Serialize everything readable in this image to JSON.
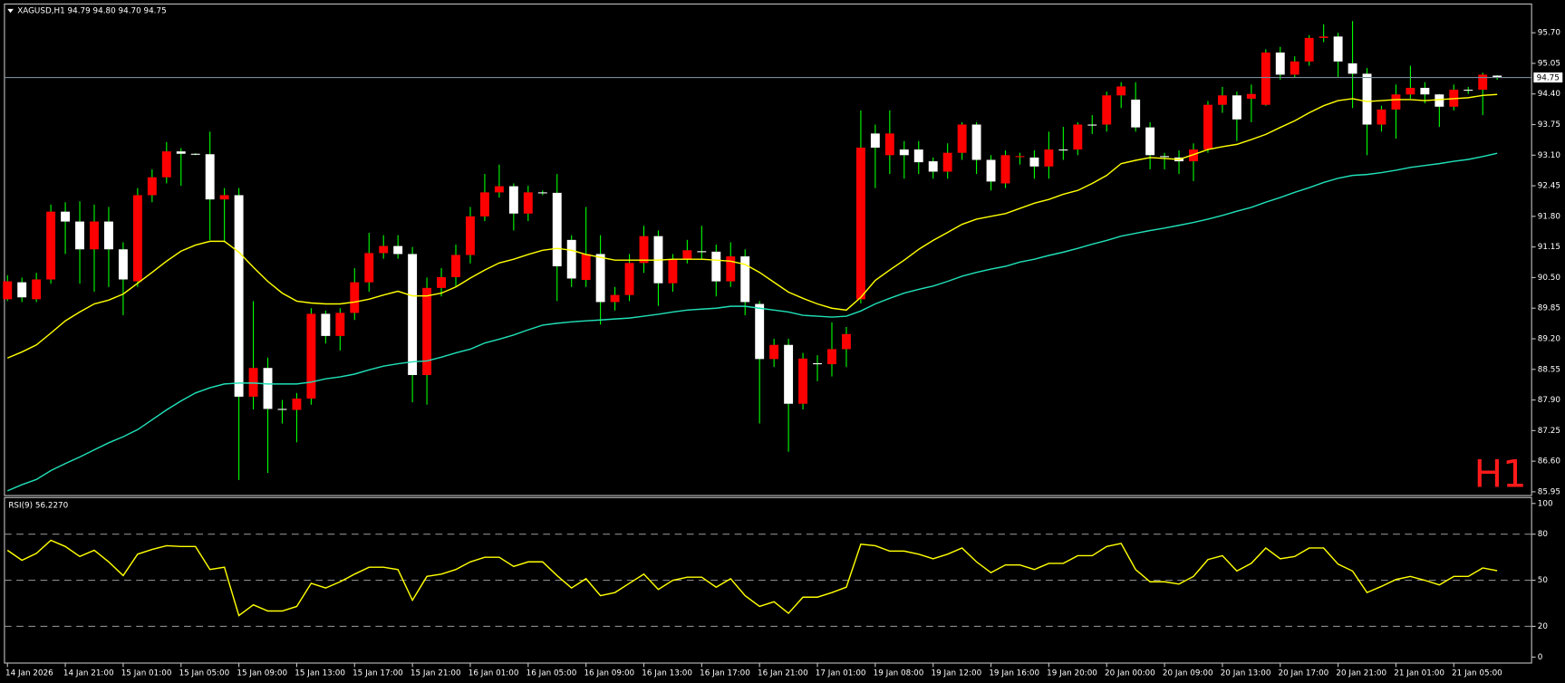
{
  "chart_data": [
    {
      "type": "candlestick",
      "title": "XAGUSD,H1  94.79 94.80 94.70 94.75",
      "annotation": "H1",
      "current_price": 94.75,
      "up_color": "#ff0000",
      "down_color": "#ffffff",
      "wick_color": "#00ff00",
      "price_line_color": "#778899",
      "categories": [
        "14 Jan 2026",
        null,
        null,
        null,
        "14 Jan 21:00",
        null,
        null,
        null,
        "15 Jan 01:00",
        null,
        null,
        null,
        "15 Jan 05:00",
        null,
        null,
        null,
        "15 Jan 09:00",
        null,
        null,
        null,
        "15 Jan 13:00",
        null,
        null,
        null,
        "15 Jan 17:00",
        null,
        null,
        null,
        "15 Jan 21:00",
        null,
        null,
        null,
        "16 Jan 01:00",
        null,
        null,
        null,
        "16 Jan 05:00",
        null,
        null,
        null,
        "16 Jan 09:00",
        null,
        null,
        null,
        "16 Jan 13:00",
        null,
        null,
        null,
        "16 Jan 17:00",
        null,
        null,
        null,
        "16 Jan 21:00",
        null,
        null,
        null,
        "17 Jan 01:00",
        null,
        null,
        null,
        "19 Jan 08:00",
        null,
        null,
        null,
        "19 Jan 12:00",
        null,
        null,
        null,
        "19 Jan 16:00",
        null,
        null,
        null,
        "19 Jan 20:00",
        null,
        null,
        null,
        "20 Jan 00:00",
        null,
        null,
        null,
        "20 Jan 09:00",
        null,
        null,
        null,
        "20 Jan 13:00",
        null,
        null,
        null,
        "20 Jan 17:00",
        null,
        null,
        null,
        "20 Jan 21:00",
        null,
        null,
        null,
        "21 Jan 01:00",
        null,
        null,
        null,
        "21 Jan 05:00",
        null,
        null,
        null
      ],
      "open": [
        90.04,
        90.4,
        90.04,
        90.46,
        91.9,
        91.69,
        91.1,
        91.69,
        91.1,
        90.42,
        92.25,
        92.63,
        93.18,
        93.13,
        93.12,
        92.16,
        92.25,
        87.97,
        88.58,
        87.71,
        87.69,
        87.93,
        89.73,
        89.26,
        89.75,
        90.4,
        91.02,
        91.17,
        91.0,
        88.43,
        90.28,
        90.51,
        90.98,
        91.8,
        92.31,
        92.44,
        91.86,
        92.31,
        92.3,
        91.3,
        90.45,
        91.0,
        89.98,
        90.13,
        90.81,
        91.38,
        90.38,
        90.89,
        91.06,
        91.05,
        90.42,
        90.95,
        89.94,
        88.77,
        89.07,
        87.82,
        88.68,
        88.66,
        88.98,
        90.04,
        93.56,
        93.1,
        93.22,
        93.22,
        92.97,
        92.75,
        93.15,
        93.75,
        93.0,
        92.5,
        93.07,
        93.05,
        92.86,
        93.22,
        93.22,
        93.75,
        93.75,
        94.37,
        94.28,
        93.69,
        93.08,
        93.05,
        92.97,
        93.22,
        94.17,
        94.37,
        94.3,
        94.17,
        95.28,
        94.81,
        95.09,
        95.59,
        95.62,
        95.05,
        94.83,
        93.75,
        94.07,
        94.39,
        94.53,
        94.39,
        94.13,
        94.49,
        94.49,
        94.79
      ],
      "high": [
        90.55,
        90.5,
        90.6,
        92.05,
        92.1,
        92.12,
        92.05,
        92.0,
        91.25,
        92.4,
        92.8,
        93.38,
        93.25,
        93.14,
        93.6,
        92.4,
        92.4,
        90.0,
        88.8,
        87.9,
        88.05,
        89.85,
        89.8,
        89.85,
        90.7,
        91.45,
        91.4,
        91.4,
        91.15,
        90.5,
        90.7,
        91.2,
        92.0,
        92.7,
        92.9,
        92.5,
        92.45,
        92.35,
        92.7,
        91.4,
        92.0,
        91.4,
        90.3,
        91.0,
        91.6,
        91.5,
        91.0,
        91.3,
        91.6,
        91.2,
        91.25,
        91.1,
        90.0,
        89.2,
        89.2,
        88.9,
        88.85,
        89.55,
        89.45,
        94.05,
        93.75,
        94.05,
        93.4,
        93.4,
        93.05,
        93.35,
        93.8,
        93.8,
        93.1,
        93.2,
        93.15,
        93.2,
        93.6,
        93.7,
        93.8,
        93.95,
        94.45,
        94.65,
        94.65,
        93.8,
        93.15,
        93.2,
        93.35,
        94.25,
        94.55,
        94.45,
        94.6,
        95.35,
        95.4,
        95.2,
        95.65,
        95.88,
        95.7,
        95.95,
        94.95,
        94.15,
        94.6,
        95.0,
        94.65,
        94.4,
        94.6,
        94.55,
        94.85,
        94.8
      ],
      "low": [
        90.0,
        89.98,
        89.98,
        90.37,
        91.0,
        90.37,
        90.2,
        90.3,
        89.7,
        90.3,
        92.1,
        92.5,
        92.45,
        93.1,
        91.3,
        91.25,
        86.2,
        87.7,
        86.35,
        87.4,
        87.0,
        87.8,
        89.1,
        88.95,
        89.6,
        90.2,
        90.9,
        90.9,
        87.85,
        87.8,
        90.1,
        90.3,
        90.8,
        91.7,
        92.2,
        91.5,
        91.7,
        92.25,
        90.0,
        90.3,
        90.3,
        89.5,
        89.8,
        90.0,
        90.6,
        89.9,
        90.2,
        90.8,
        90.9,
        90.1,
        90.3,
        89.7,
        87.4,
        88.6,
        86.8,
        87.7,
        88.3,
        88.4,
        88.6,
        89.95,
        92.4,
        92.7,
        92.6,
        92.7,
        92.6,
        92.6,
        93.0,
        92.7,
        92.35,
        92.4,
        92.9,
        92.6,
        92.6,
        93.0,
        93.1,
        93.55,
        93.6,
        94.1,
        93.6,
        92.8,
        92.8,
        92.7,
        92.55,
        93.15,
        94.0,
        93.4,
        93.8,
        94.15,
        94.7,
        94.75,
        95.0,
        95.5,
        94.75,
        94.1,
        93.1,
        93.6,
        93.45,
        94.3,
        94.2,
        93.7,
        94.05,
        94.4,
        93.95,
        94.7
      ],
      "close": [
        90.42,
        90.08,
        90.46,
        91.9,
        91.69,
        91.1,
        91.69,
        91.1,
        90.46,
        92.25,
        92.63,
        93.18,
        93.13,
        93.12,
        92.16,
        92.25,
        87.97,
        88.58,
        87.71,
        87.69,
        87.93,
        89.73,
        89.26,
        89.75,
        90.4,
        91.02,
        91.17,
        91.0,
        88.43,
        90.28,
        90.51,
        90.98,
        91.8,
        92.31,
        92.44,
        91.86,
        92.31,
        92.3,
        90.74,
        90.48,
        91.0,
        89.98,
        90.13,
        90.81,
        91.38,
        90.38,
        90.89,
        91.08,
        91.05,
        90.42,
        90.95,
        89.98,
        88.77,
        89.07,
        87.82,
        88.78,
        88.66,
        88.98,
        89.3,
        93.26,
        93.26,
        93.56,
        93.1,
        92.95,
        92.75,
        93.15,
        93.75,
        93.0,
        92.54,
        93.1,
        93.08,
        92.86,
        93.22,
        93.21,
        93.75,
        93.74,
        94.37,
        94.56,
        93.69,
        93.1,
        93.07,
        92.97,
        93.22,
        94.17,
        94.37,
        93.86,
        94.4,
        95.28,
        94.81,
        95.09,
        95.59,
        95.62,
        95.09,
        94.83,
        93.75,
        94.07,
        94.39,
        94.53,
        94.39,
        94.13,
        94.49,
        94.48,
        94.81,
        94.75
      ],
      "series": [
        {
          "color": "#ffff00",
          "values": [
            88.79,
            88.92,
            89.07,
            89.32,
            89.58,
            89.77,
            89.94,
            90.02,
            90.15,
            90.38,
            90.61,
            90.85,
            91.06,
            91.19,
            91.27,
            91.27,
            91.04,
            90.72,
            90.42,
            90.17,
            90.0,
            89.96,
            89.94,
            89.94,
            89.98,
            90.04,
            90.13,
            90.21,
            90.11,
            90.11,
            90.17,
            90.3,
            90.49,
            90.66,
            90.81,
            90.89,
            90.99,
            91.08,
            91.12,
            91.08,
            90.99,
            90.93,
            90.87,
            90.87,
            90.87,
            90.87,
            90.89,
            90.89,
            90.89,
            90.87,
            90.85,
            90.78,
            90.61,
            90.4,
            90.19,
            90.06,
            89.94,
            89.85,
            89.81,
            90.08,
            90.44,
            90.66,
            90.87,
            91.1,
            91.29,
            91.46,
            91.63,
            91.74,
            91.8,
            91.86,
            91.97,
            92.08,
            92.16,
            92.27,
            92.35,
            92.5,
            92.67,
            92.92,
            92.99,
            93.05,
            93.03,
            93.01,
            93.11,
            93.22,
            93.28,
            93.33,
            93.43,
            93.54,
            93.69,
            93.83,
            94.0,
            94.15,
            94.26,
            94.3,
            94.24,
            94.26,
            94.28,
            94.28,
            94.26,
            94.28,
            94.3,
            94.32,
            94.37,
            94.39
          ]
        },
        {
          "color": "#20e0b8",
          "values": [
            85.97,
            86.1,
            86.21,
            86.4,
            86.55,
            86.69,
            86.84,
            86.99,
            87.12,
            87.27,
            87.48,
            87.69,
            87.88,
            88.05,
            88.16,
            88.24,
            88.26,
            88.26,
            88.24,
            88.24,
            88.24,
            88.28,
            88.35,
            88.39,
            88.45,
            88.54,
            88.62,
            88.67,
            88.71,
            88.73,
            88.81,
            88.9,
            88.98,
            89.11,
            89.19,
            89.28,
            89.39,
            89.49,
            89.53,
            89.56,
            89.58,
            89.6,
            89.62,
            89.64,
            89.68,
            89.72,
            89.77,
            89.81,
            89.83,
            89.85,
            89.89,
            89.89,
            89.85,
            89.81,
            89.77,
            89.7,
            89.68,
            89.66,
            89.68,
            89.79,
            89.94,
            90.06,
            90.17,
            90.25,
            90.32,
            90.42,
            90.53,
            90.61,
            90.68,
            90.74,
            90.83,
            90.89,
            90.97,
            91.04,
            91.12,
            91.21,
            91.29,
            91.38,
            91.44,
            91.5,
            91.55,
            91.61,
            91.67,
            91.74,
            91.82,
            91.91,
            91.99,
            92.1,
            92.2,
            92.31,
            92.41,
            92.52,
            92.61,
            92.67,
            92.69,
            92.73,
            92.78,
            92.84,
            92.88,
            92.92,
            92.97,
            93.01,
            93.07,
            93.14
          ]
        }
      ],
      "ylim": [
        85.87,
        96.29
      ],
      "yticks": [
        {
          "value": 95.7,
          "label": "95.70"
        },
        {
          "value": 95.05,
          "label": "95.05"
        },
        {
          "value": 94.4,
          "label": "94.40"
        },
        {
          "value": 93.75,
          "label": "93.75"
        },
        {
          "value": 93.1,
          "label": "93.10"
        },
        {
          "value": 92.45,
          "label": "92.45"
        },
        {
          "value": 91.8,
          "label": "91.80"
        },
        {
          "value": 91.15,
          "label": "91.15"
        },
        {
          "value": 90.5,
          "label": "90.50"
        },
        {
          "value": 89.85,
          "label": "89.85"
        },
        {
          "value": 89.2,
          "label": "89.20"
        },
        {
          "value": 88.55,
          "label": "88.55"
        },
        {
          "value": 87.9,
          "label": "87.90"
        },
        {
          "value": 87.25,
          "label": "87.25"
        },
        {
          "value": 86.6,
          "label": "86.60"
        },
        {
          "value": 85.95,
          "label": "85.95"
        }
      ]
    },
    {
      "type": "line",
      "title": "RSI(9) 56.2270",
      "color": "#ffff00",
      "values": [
        69.5,
        63,
        67.5,
        76,
        72,
        65.5,
        69.5,
        62,
        53,
        67,
        70,
        72.5,
        72,
        72,
        57,
        58.5,
        27,
        34,
        30,
        30,
        33,
        48,
        45,
        49,
        54,
        58.5,
        58.5,
        57,
        37,
        52.5,
        54,
        57,
        62,
        65,
        65,
        59,
        62,
        62,
        53,
        45,
        51,
        40,
        42,
        48,
        54,
        44,
        50,
        52,
        52,
        45.5,
        51,
        40,
        33,
        36,
        28.5,
        39,
        39,
        42,
        45.5,
        73.5,
        72.5,
        69,
        69,
        67,
        64,
        67,
        71,
        62,
        55,
        60,
        60,
        57,
        61,
        61,
        66,
        66,
        72,
        74,
        57,
        49,
        49,
        47.5,
        52.5,
        63.5,
        66,
        56,
        61,
        71,
        64,
        65.5,
        71,
        71,
        60.5,
        56,
        42,
        46,
        50.5,
        52.5,
        50,
        47,
        52.5,
        52.5,
        58,
        56.227
      ],
      "levels": [
        20,
        50,
        80
      ],
      "ylim": [
        -3.9,
        103.2
      ],
      "yticks": [
        0,
        20,
        50,
        80,
        100
      ]
    }
  ]
}
